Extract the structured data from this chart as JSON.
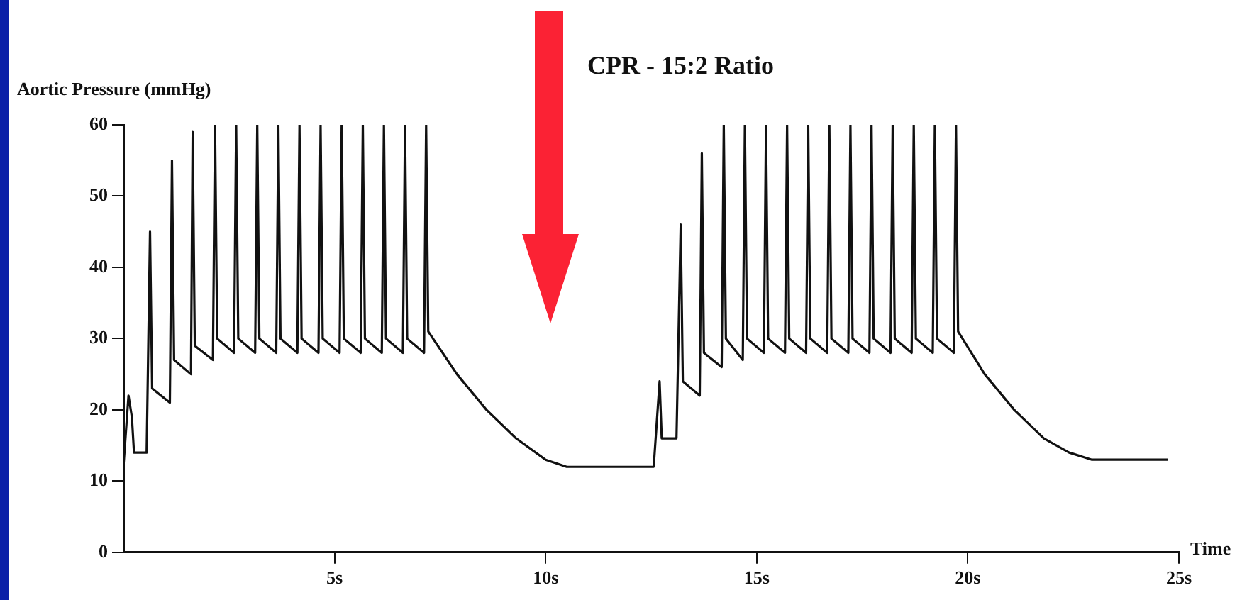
{
  "chart_data": {
    "type": "line",
    "title": "CPR - 15:2 Ratio",
    "xlabel": "Time",
    "ylabel": "Aortic Pressure (mmHg)",
    "color": "#111111",
    "x": [
      0,
      0.12,
      0.2,
      0.25,
      0.55,
      0.63,
      0.68,
      1.1,
      1.15,
      1.2,
      1.6,
      1.64,
      1.69,
      2.12,
      2.17,
      2.22,
      2.62,
      2.67,
      2.72,
      3.12,
      3.17,
      3.22,
      3.62,
      3.67,
      3.72,
      4.12,
      4.17,
      4.22,
      4.62,
      4.67,
      4.72,
      5.12,
      5.17,
      5.22,
      5.62,
      5.67,
      5.72,
      6.12,
      6.17,
      6.22,
      6.62,
      6.67,
      6.72,
      7.12,
      7.17,
      7.22,
      7.9,
      8.6,
      9.3,
      10.0,
      10.5,
      12.56,
      12.7,
      12.75,
      13.1,
      13.2,
      13.25,
      13.65,
      13.7,
      13.75,
      14.17,
      14.22,
      14.27,
      14.67,
      14.72,
      14.77,
      15.17,
      15.22,
      15.27,
      15.67,
      15.72,
      15.77,
      16.17,
      16.22,
      16.27,
      16.67,
      16.72,
      16.77,
      17.17,
      17.22,
      17.27,
      17.67,
      17.72,
      17.77,
      18.17,
      18.22,
      18.27,
      18.67,
      18.72,
      18.77,
      19.17,
      19.22,
      19.27,
      19.67,
      19.72,
      19.77,
      20.4,
      21.1,
      21.8,
      22.4,
      22.94,
      24.74
    ],
    "values": [
      12,
      22,
      19,
      14,
      14,
      45,
      23,
      21,
      55,
      27,
      25,
      59,
      29,
      27,
      60,
      30,
      28,
      60,
      30,
      28,
      60,
      30,
      28,
      60,
      30,
      28,
      60,
      30,
      28,
      60,
      30,
      28,
      60,
      30,
      28,
      60,
      30,
      28,
      60,
      30,
      28,
      60,
      30,
      28,
      60,
      31,
      25,
      20,
      16,
      13,
      12,
      12,
      24,
      16,
      16,
      46,
      24,
      22,
      56,
      28,
      26,
      60,
      30,
      27,
      60,
      30,
      28,
      60,
      30,
      28,
      60,
      30,
      28,
      60,
      30,
      28,
      60,
      30,
      28,
      60,
      30,
      28,
      60,
      30,
      28,
      60,
      30,
      28,
      60,
      30,
      28,
      60,
      30,
      28,
      60,
      31,
      25,
      20,
      16,
      14,
      13,
      13
    ],
    "xlim": [
      0,
      25
    ],
    "ylim": [
      0,
      60
    ],
    "xticks": [
      {
        "value": 5,
        "label": "5s"
      },
      {
        "value": 10,
        "label": "10s"
      },
      {
        "value": 15,
        "label": "15s"
      },
      {
        "value": 20,
        "label": "20s"
      },
      {
        "value": 25,
        "label": "25s"
      }
    ],
    "yticks": [
      0,
      10,
      20,
      30,
      40,
      50,
      60
    ]
  }
}
